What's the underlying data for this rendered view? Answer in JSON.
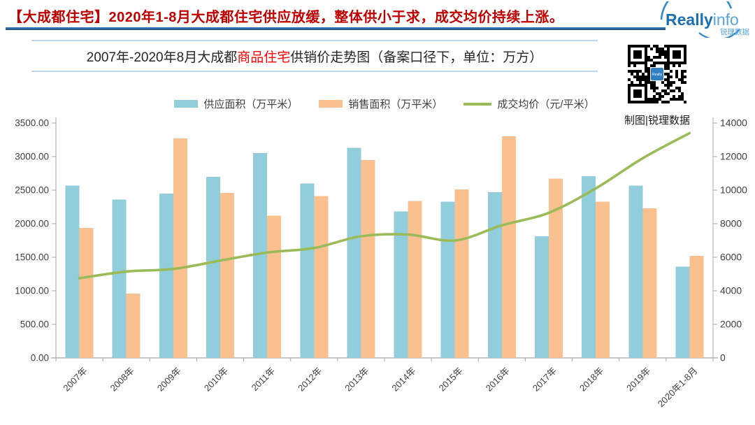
{
  "header": {
    "headline": "【大成都住宅】2020年1-8月大成都住宅供应放缓，整体供小于求，成交均价持续上涨。",
    "headline_color": "#C00000",
    "rule_color": "#2E75B6",
    "logo": {
      "main_bold": "Really",
      "main_light": "info",
      "sub": "锐理数据"
    }
  },
  "title": {
    "prefix": "2007年-2020年8月大成都",
    "highlight": "商品住宅",
    "suffix": "供销价走势图（备案口径下，单位：万方）",
    "highlight_color": "#FF0000"
  },
  "qr": {
    "caption": "制图|锐理数据"
  },
  "chart_data": {
    "type": "bar+line",
    "title": "2007年-2020年8月大成都商品住宅供销价走势图（备案口径下，单位：万方）",
    "legend_position": "top",
    "grid": false,
    "categories": [
      "2007年",
      "2008年",
      "2009年",
      "2010年",
      "2011年",
      "2012年",
      "2013年",
      "2014年",
      "2015年",
      "2016年",
      "2017年",
      "2018年",
      "2019年",
      "2020年1-8月"
    ],
    "series": [
      {
        "name": "供应面积（万平米）",
        "type": "bar",
        "axis": "left",
        "color": "#92CDDC",
        "values": [
          2570,
          2360,
          2450,
          2700,
          3050,
          2600,
          3130,
          2180,
          2330,
          2470,
          1810,
          2710,
          2570,
          1360
        ]
      },
      {
        "name": "销售面积（万平米）",
        "type": "bar",
        "axis": "left",
        "color": "#FAC090",
        "values": [
          1940,
          960,
          3270,
          2460,
          2120,
          2410,
          2950,
          2340,
          2510,
          3300,
          2670,
          2330,
          2230,
          1520
        ]
      },
      {
        "name": "成交均价（元/平米）",
        "type": "line",
        "axis": "right",
        "color": "#9BBB59",
        "values": [
          4750,
          5150,
          5300,
          5800,
          6280,
          6550,
          7250,
          7350,
          7000,
          7900,
          8650,
          10100,
          11900,
          13400
        ]
      }
    ],
    "left_axis": {
      "min": 0,
      "max": 3500,
      "step": 500,
      "decimals": 2,
      "label": "万平米"
    },
    "right_axis": {
      "min": 0,
      "max": 14000,
      "step": 2000,
      "decimals": 0,
      "label": "元/平米"
    }
  }
}
